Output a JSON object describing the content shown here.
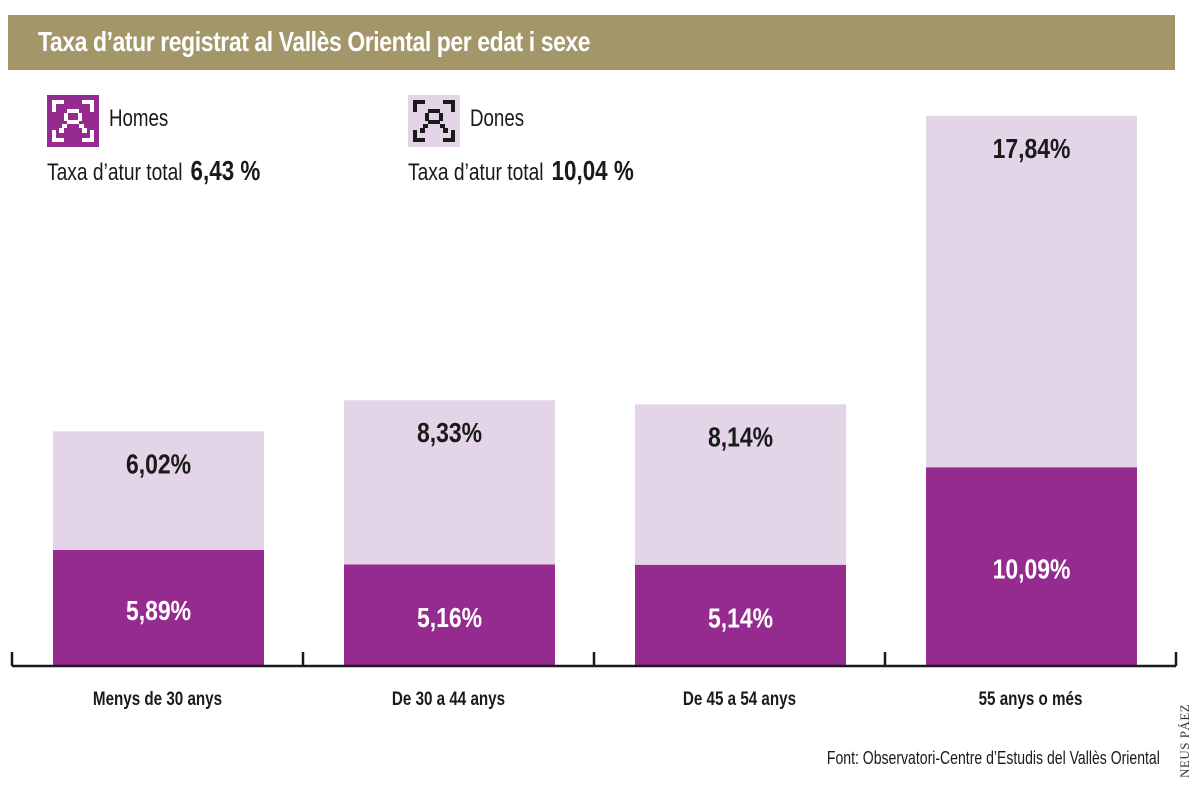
{
  "header": {
    "title": "Taxa d’atur registrat al Vallès Oriental per edat i sexe"
  },
  "legend": [
    {
      "label": "Homes",
      "total_label": "Taxa d’atur total",
      "total_value": "6,43 %",
      "icon": "person-frame-icon",
      "color": "#952a8f"
    },
    {
      "label": "Dones",
      "total_label": "Taxa d’atur total",
      "total_value": "10,04 %",
      "icon": "person-frame-icon",
      "color": "#e3d4e8"
    }
  ],
  "chart_data": {
    "type": "bar",
    "stacked": true,
    "title": "Taxa d’atur registrat al Vallès Oriental per edat i sexe",
    "categories": [
      "Menys de 30 anys",
      "De 30 a 44 anys",
      "De 45 a 54 anys",
      "55 anys o més"
    ],
    "series": [
      {
        "name": "Homes",
        "values": [
          5.89,
          5.16,
          5.14,
          10.09
        ],
        "labels": [
          "5,89%",
          "5,16%",
          "5,14%",
          "10,09%"
        ],
        "color": "#952a8f",
        "label_color": "#ffffff"
      },
      {
        "name": "Dones",
        "values": [
          6.02,
          8.33,
          8.14,
          17.84
        ],
        "labels": [
          "6,02%",
          "8,33%",
          "8,14%",
          "17,84%"
        ],
        "color": "#e3d4e8",
        "label_color": "#1a1a1a"
      }
    ],
    "xlabel": "",
    "ylabel": "",
    "ylim": [
      0,
      28
    ],
    "grid": false,
    "legend_position": "top-left"
  },
  "source": "Font: Observatori-Centre d’Estudis del Vallès Oriental",
  "credit": "NEUS PÁEZ"
}
